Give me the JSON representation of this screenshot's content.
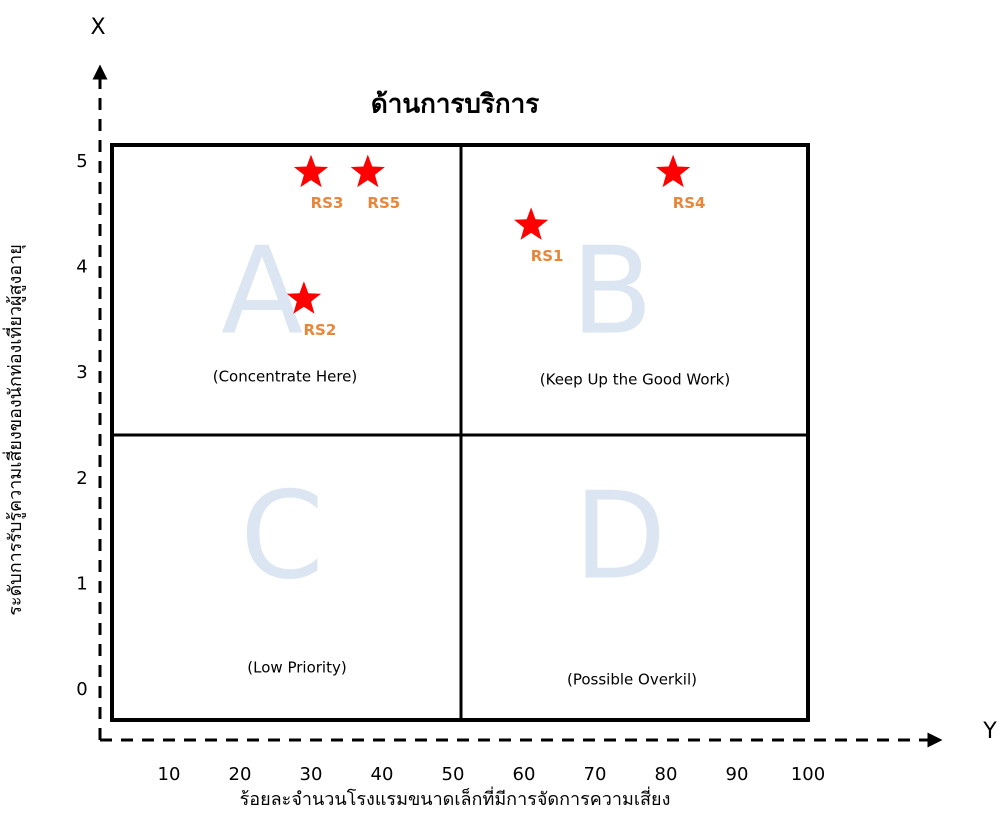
{
  "chart_data": {
    "type": "scatter",
    "title": "ด้านการบริการ",
    "x_label": "ร้อยละจำนวนโรงแรมขนาดเล็กที่มีการจัดการความเสี่ยง",
    "y_label": "ระดับการรับรู้ความเสี่ยงของนักท่องเที่ยวผู้สูงอายุ",
    "x_arrow_label": "Y",
    "y_arrow_label": "X",
    "labels": [
      "RS1",
      "RS2",
      "RS3",
      "RS4",
      "RS5"
    ],
    "x": [
      61,
      29,
      30,
      81,
      38
    ],
    "values": [
      4.4,
      3.7,
      4.9,
      4.9,
      4.9
    ],
    "color": "#ff0000",
    "label_color": "#e8863a",
    "xlim": [
      0,
      100
    ],
    "xticks": [
      10,
      20,
      30,
      40,
      50,
      60,
      70,
      80,
      90,
      100
    ],
    "ylim": [
      0,
      5
    ],
    "yticks": [
      0,
      1,
      2,
      3,
      4,
      5
    ],
    "quadrants": [
      {
        "letter": "A",
        "caption": "(Concentrate Here)"
      },
      {
        "letter": "B",
        "caption": "(Keep Up the Good Work)"
      },
      {
        "letter": "C",
        "caption": "(Low Priority)"
      },
      {
        "letter": "D",
        "caption": "(Possible Overkil)"
      }
    ]
  }
}
